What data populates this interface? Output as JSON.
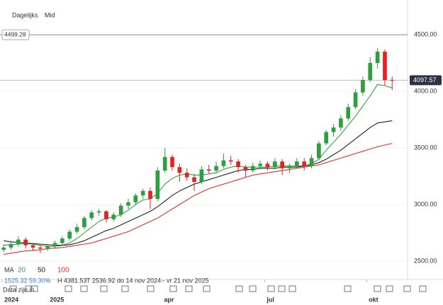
{
  "header": {
    "interval": "Dagelijks",
    "price_type": "Mid"
  },
  "chart_data": {
    "type": "candlestick",
    "candles": [
      [
        2600,
        2650,
        2580,
        2620
      ],
      [
        2620,
        2680,
        2600,
        2650
      ],
      [
        2650,
        2720,
        2630,
        2690
      ],
      [
        2690,
        2710,
        2610,
        2640
      ],
      [
        2640,
        2660,
        2590,
        2620
      ],
      [
        2620,
        2640,
        2570,
        2610
      ],
      [
        2610,
        2650,
        2590,
        2630
      ],
      [
        2630,
        2680,
        2610,
        2660
      ],
      [
        2660,
        2720,
        2640,
        2700
      ],
      [
        2700,
        2780,
        2680,
        2760
      ],
      [
        2760,
        2830,
        2740,
        2800
      ],
      [
        2800,
        2900,
        2780,
        2880
      ],
      [
        2880,
        2950,
        2860,
        2930
      ],
      [
        2930,
        2960,
        2900,
        2940
      ],
      [
        2940,
        2950,
        2840,
        2870
      ],
      [
        2870,
        2930,
        2850,
        2910
      ],
      [
        2910,
        3010,
        2890,
        2990
      ],
      [
        2990,
        3050,
        2960,
        3020
      ],
      [
        3020,
        3100,
        3000,
        3080
      ],
      [
        3080,
        3140,
        3050,
        3120
      ],
      [
        3120,
        3150,
        2960,
        3050
      ],
      [
        3050,
        3330,
        3030,
        3300
      ],
      [
        3300,
        3500,
        3280,
        3420
      ],
      [
        3420,
        3440,
        3300,
        3330
      ],
      [
        3330,
        3360,
        3200,
        3280
      ],
      [
        3280,
        3320,
        3210,
        3240
      ],
      [
        3240,
        3270,
        3120,
        3200
      ],
      [
        3200,
        3340,
        3180,
        3310
      ],
      [
        3310,
        3350,
        3270,
        3300
      ],
      [
        3300,
        3380,
        3280,
        3340
      ],
      [
        3340,
        3450,
        3320,
        3390
      ],
      [
        3390,
        3430,
        3350,
        3380
      ],
      [
        3380,
        3400,
        3280,
        3330
      ],
      [
        3330,
        3350,
        3240,
        3300
      ],
      [
        3300,
        3370,
        3280,
        3340
      ],
      [
        3340,
        3390,
        3310,
        3360
      ],
      [
        3360,
        3380,
        3300,
        3330
      ],
      [
        3330,
        3410,
        3310,
        3380
      ],
      [
        3380,
        3400,
        3260,
        3320
      ],
      [
        3320,
        3360,
        3280,
        3340
      ],
      [
        3340,
        3410,
        3320,
        3380
      ],
      [
        3380,
        3410,
        3300,
        3340
      ],
      [
        3340,
        3440,
        3320,
        3410
      ],
      [
        3410,
        3560,
        3390,
        3540
      ],
      [
        3540,
        3660,
        3520,
        3640
      ],
      [
        3640,
        3710,
        3600,
        3680
      ],
      [
        3680,
        3790,
        3650,
        3760
      ],
      [
        3760,
        3890,
        3740,
        3860
      ],
      [
        3860,
        4020,
        3840,
        3990
      ],
      [
        3990,
        4130,
        3960,
        4100
      ],
      [
        4100,
        4300,
        4080,
        4250
      ],
      [
        4250,
        4381.53,
        4200,
        4350
      ],
      [
        4350,
        4370,
        4050,
        4100
      ],
      [
        4100,
        4130,
        4010,
        4097.57
      ]
    ],
    "up_color": "#2e9e3e",
    "down_color": "#e02424",
    "series": [
      {
        "name": "20",
        "color": "#3aa04a",
        "values": [
          2640,
          2645,
          2650,
          2655,
          2650,
          2640,
          2630,
          2630,
          2640,
          2660,
          2700,
          2750,
          2800,
          2850,
          2880,
          2890,
          2910,
          2950,
          3000,
          3040,
          3050,
          3100,
          3180,
          3230,
          3260,
          3270,
          3260,
          3260,
          3270,
          3280,
          3310,
          3330,
          3340,
          3330,
          3330,
          3330,
          3330,
          3340,
          3340,
          3340,
          3340,
          3340,
          3360,
          3400,
          3480,
          3550,
          3620,
          3700,
          3780,
          3870,
          3960,
          4060,
          4050,
          4030
        ]
      },
      {
        "name": "50",
        "color": "#222222",
        "values": [
          2680,
          2670,
          2665,
          2660,
          2655,
          2650,
          2645,
          2640,
          2640,
          2645,
          2660,
          2680,
          2710,
          2740,
          2770,
          2790,
          2820,
          2850,
          2880,
          2910,
          2940,
          2980,
          3030,
          3080,
          3120,
          3150,
          3180,
          3200,
          3220,
          3240,
          3260,
          3280,
          3300,
          3310,
          3310,
          3320,
          3320,
          3320,
          3330,
          3330,
          3330,
          3340,
          3350,
          3370,
          3400,
          3440,
          3480,
          3530,
          3580,
          3630,
          3680,
          3720,
          3730,
          3740
        ]
      },
      {
        "name": "100",
        "color": "#e03030",
        "values": [
          2560,
          2570,
          2580,
          2590,
          2595,
          2600,
          2610,
          2615,
          2620,
          2630,
          2640,
          2650,
          2660,
          2680,
          2700,
          2720,
          2740,
          2760,
          2790,
          2820,
          2850,
          2880,
          2920,
          2960,
          3000,
          3040,
          3080,
          3110,
          3140,
          3160,
          3180,
          3200,
          3220,
          3240,
          3260,
          3270,
          3280,
          3290,
          3300,
          3310,
          3320,
          3330,
          3340,
          3350,
          3370,
          3390,
          3410,
          3430,
          3450,
          3470,
          3490,
          3510,
          3525,
          3540
        ]
      }
    ],
    "legend_label": "MA",
    "ylim": [
      2337.5,
      4806.25
    ],
    "yticks": [
      {
        "value": 2500,
        "label": "2500.00"
      },
      {
        "value": 3000,
        "label": "3000.00"
      },
      {
        "value": 3500,
        "label": "3500.00"
      },
      {
        "value": 4000,
        "label": "4000.00"
      },
      {
        "value": 4500,
        "label": "4500.00"
      }
    ],
    "xlim": [
      -0.5,
      55.1
    ],
    "xticks": [
      {
        "value": -0.2,
        "label": "2024"
      },
      {
        "value": 6,
        "label": "2025"
      },
      {
        "value": 21.6,
        "label": "apr"
      },
      {
        "value": 35.6,
        "label": "jul"
      },
      {
        "value": 49.5,
        "label": "okt"
      }
    ],
    "reference_line": 4499.28,
    "last_price": 4097.57,
    "grid": true
  },
  "stats": {
    "change": "1525.32",
    "change_pct": "59.30%",
    "high": "H 4381.53",
    "low": "T 2536.92",
    "range": "do 14 nov 2024 - vr 21 nov 2025",
    "note": "Data zijn in"
  }
}
